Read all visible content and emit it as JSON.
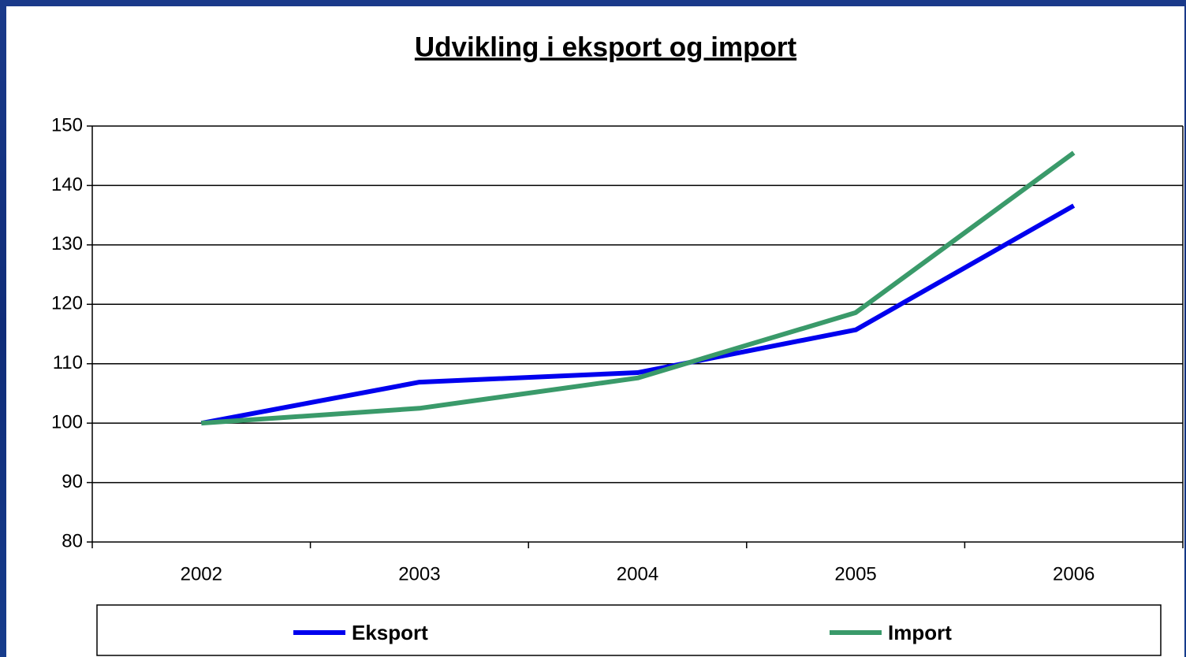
{
  "chart_data": {
    "type": "line",
    "title": "Udvikling i eksport og import",
    "categories": [
      "2002",
      "2003",
      "2004",
      "2005",
      "2006"
    ],
    "series": [
      {
        "name": "Eksport",
        "color": "#0000ee",
        "values": [
          100,
          106.9,
          108.5,
          115.7,
          136.6
        ]
      },
      {
        "name": "Import",
        "color": "#3a9a6a",
        "values": [
          100,
          102.5,
          107.6,
          118.6,
          145.5
        ]
      }
    ],
    "ylim": [
      80,
      150
    ],
    "yticks": [
      80,
      90,
      100,
      110,
      120,
      130,
      140,
      150
    ],
    "grid": true,
    "legend": "bottom"
  }
}
